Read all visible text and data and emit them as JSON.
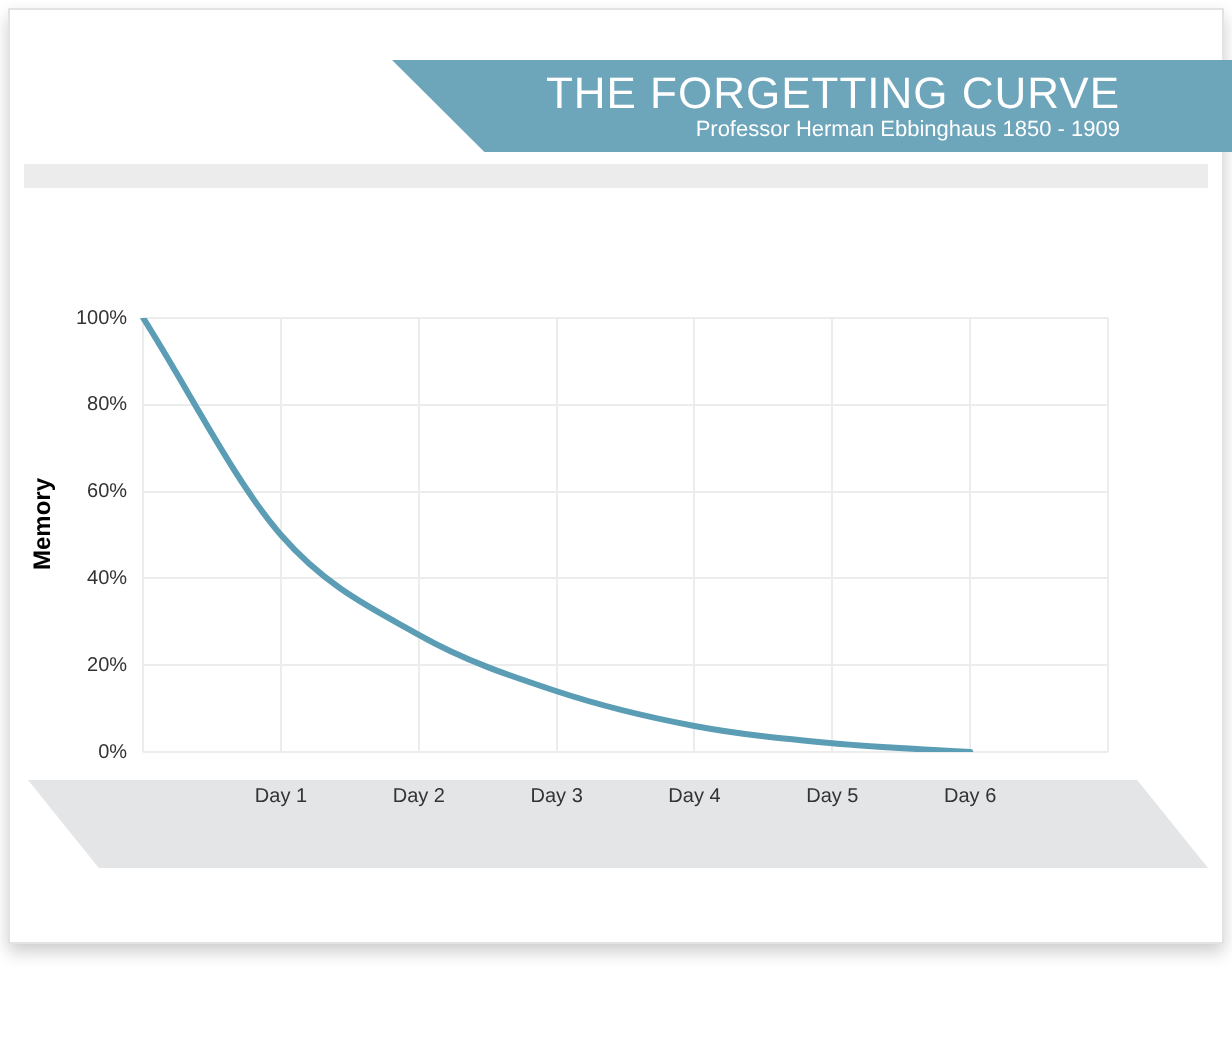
{
  "chart_data": {
    "type": "line",
    "title": "THE FORGETTING CURVE",
    "subtitle": "Professor Herman Ebbinghaus 1850 - 1909",
    "ylabel": "Memory",
    "categories": [
      null,
      "Day 1",
      "Day 2",
      "Day 3",
      "Day 4",
      "Day 5",
      "Day 6",
      null
    ],
    "series": [
      {
        "color": "#5b9db5",
        "values": [
          100,
          50,
          27,
          14,
          6,
          2,
          0,
          null
        ]
      }
    ],
    "ylim": [
      0,
      100
    ],
    "yticks": [
      {
        "value": 0,
        "label": "0%"
      },
      {
        "value": 20,
        "label": "20%"
      },
      {
        "value": 40,
        "label": "40%"
      },
      {
        "value": 60,
        "label": "60%"
      },
      {
        "value": 80,
        "label": "80%"
      },
      {
        "value": 100,
        "label": "100%"
      }
    ],
    "grid": true,
    "marker": "none",
    "line_style": "solid",
    "legend": false
  }
}
